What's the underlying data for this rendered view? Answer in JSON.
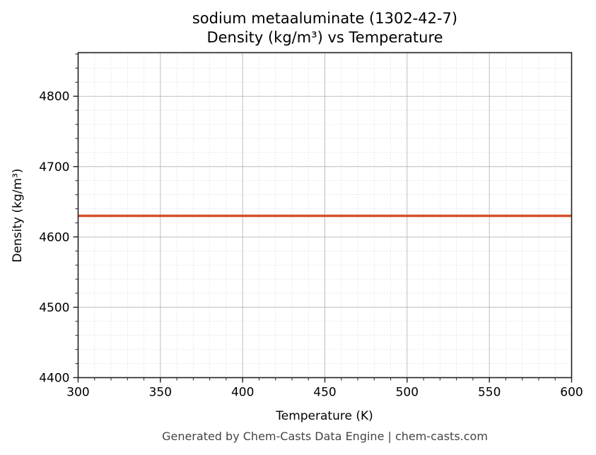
{
  "chart_data": {
    "type": "line",
    "title": "sodium metaaluminate (1302-42-7)",
    "subtitle": "Density (kg/m³) vs Temperature",
    "xlabel": "Temperature (K)",
    "ylabel": "Density (kg/m³)",
    "xlim": [
      300,
      600
    ],
    "ylim": [
      4400,
      4862
    ],
    "x_ticks": [
      300,
      350,
      400,
      450,
      500,
      550,
      600
    ],
    "y_ticks": [
      4400,
      4500,
      4600,
      4700,
      4800
    ],
    "x_minor_step": 10,
    "y_minor_step": 20,
    "grid": true,
    "legend": null,
    "series": [
      {
        "name": "Density",
        "color": "#d2522a",
        "x": [
          300,
          600
        ],
        "values": [
          4630,
          4630
        ]
      }
    ]
  },
  "footer": "Generated by Chem-Casts Data Engine | chem-casts.com"
}
